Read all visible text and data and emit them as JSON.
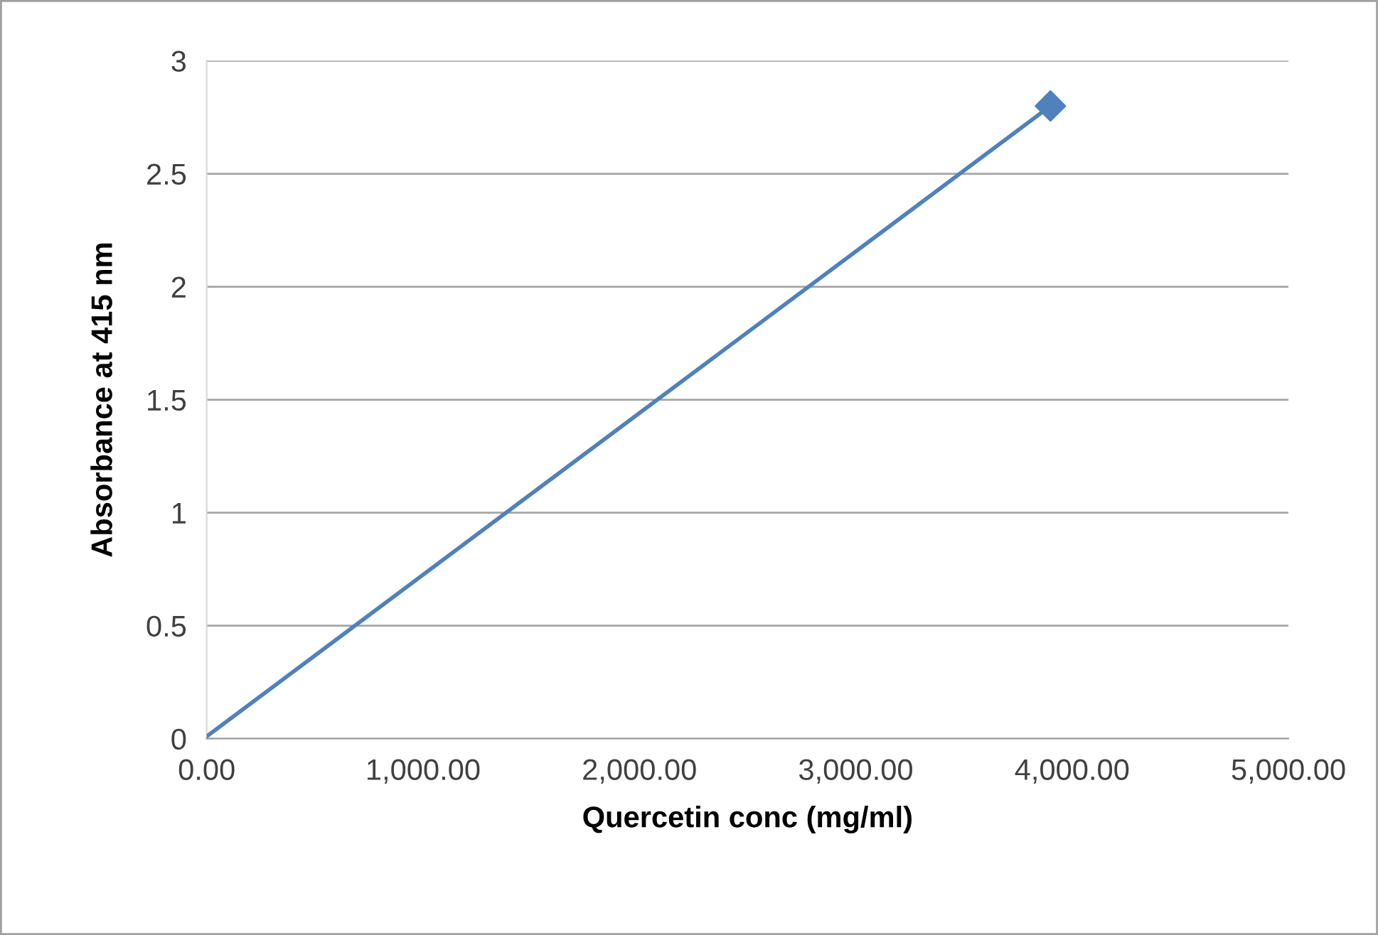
{
  "chart_data": {
    "type": "line",
    "x": [
      0,
      3900
    ],
    "xlabel": "Quercetin conc (mg/ml)",
    "ylabel": "Absorbance at 415 nm",
    "series": [
      {
        "values": [
          0.01,
          2.8
        ],
        "color": "#4f81bd",
        "marker": "none",
        "line_style": "solid"
      },
      {
        "type": "scatter",
        "values": [
          null,
          2.8
        ],
        "color": "#4f81bd",
        "marker": "diamond"
      }
    ],
    "xlim": [
      0,
      5000
    ],
    "xticks": [
      {
        "value": 0,
        "label": "0.00"
      },
      {
        "value": 1000,
        "label": "1,000.00"
      },
      {
        "value": 2000,
        "label": "2,000.00"
      },
      {
        "value": 3000,
        "label": "3,000.00"
      },
      {
        "value": 4000,
        "label": "4,000.00"
      },
      {
        "value": 5000,
        "label": "5,000.00"
      }
    ],
    "ylim": [
      0,
      3
    ],
    "yticks": [
      0,
      0.5,
      1,
      1.5,
      2,
      2.5,
      3
    ],
    "grid": "y",
    "legend": false
  }
}
